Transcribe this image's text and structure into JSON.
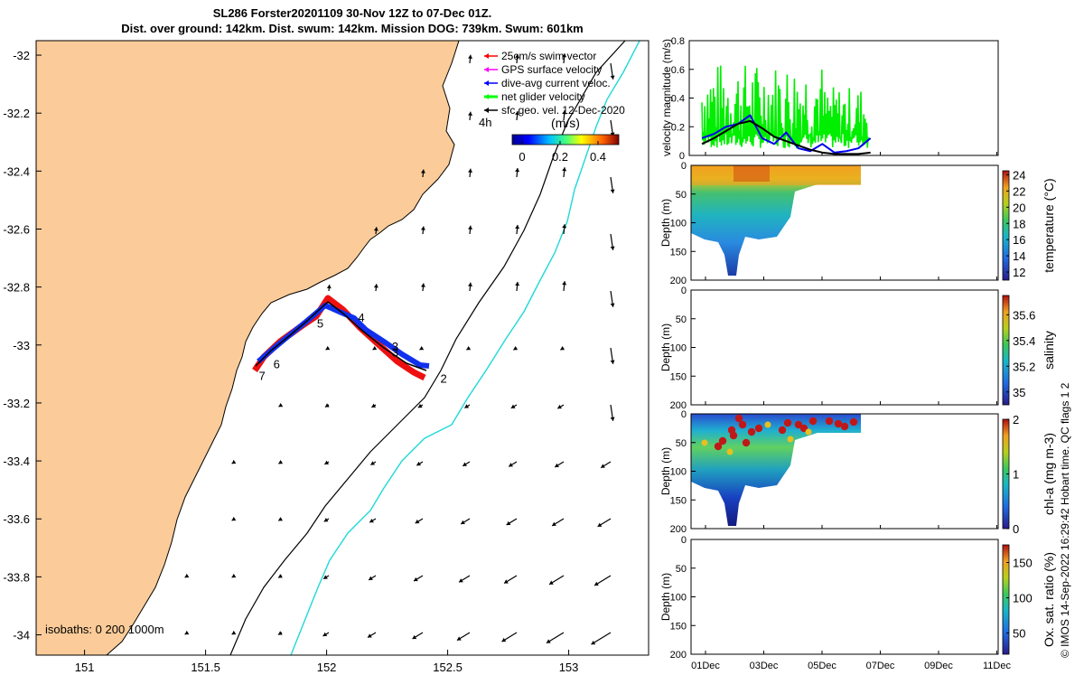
{
  "title": {
    "line1": "SL286 Forster20201109 30-Nov 12Z to 07-Dec 01Z.",
    "line2": "Dist. over ground: 142km. Dist. swum: 142km. Mission DOG: 739km. Swum: 601km"
  },
  "side_note": "© IMOS 14-Sep-2022 16:29:42 Hobart time. QC flags 1  2",
  "chart_data": [
    {
      "type": "map",
      "x_ticks": [
        "151",
        "151.5",
        "152",
        "152.5",
        "153"
      ],
      "y_ticks": [
        "-32",
        "-32.2",
        "-32.4",
        "-32.6",
        "-32.8",
        "-33",
        "-33.2",
        "-33.4",
        "-33.6",
        "-33.8",
        "-34"
      ],
      "xlim": [
        150.8,
        153.33
      ],
      "ylim": [
        -34.07,
        -31.95
      ],
      "legend": {
        "placement": "top-right",
        "items": [
          {
            "label": "25cm/s swim vector",
            "color": "#ff0000"
          },
          {
            "label": "GPS surface velocity",
            "color": "#ff00ff"
          },
          {
            "label": "dive-avg current veloc.",
            "color": "#0000ff"
          },
          {
            "label": "net glider velocity",
            "color": "#00ff00"
          },
          {
            "label": "sfc geo. vel. 12-Dec-2020",
            "color": "#000000"
          }
        ]
      },
      "extra_label": "4h",
      "colorbar": {
        "label": "(m/s)",
        "ticks": [
          "0",
          "0.2",
          "0.4"
        ]
      },
      "isobath_label": "isobaths: 0 200 1000m",
      "track_labels": [
        {
          "text": "2",
          "lon": 152.47,
          "lat": -33.13
        },
        {
          "text": "3",
          "lon": 152.27,
          "lat": -33.02
        },
        {
          "text": "3",
          "lon": 152.27,
          "lat": -33.04
        },
        {
          "text": "4",
          "lon": 152.13,
          "lat": -32.92
        },
        {
          "text": "5",
          "lon": 151.96,
          "lat": -32.94
        },
        {
          "text": "6",
          "lon": 151.78,
          "lat": -33.08
        },
        {
          "text": "7",
          "lon": 151.72,
          "lat": -33.12
        }
      ],
      "track": [
        [
          151.69,
          -33.11
        ],
        [
          151.8,
          -33.02
        ],
        [
          151.9,
          -32.95
        ],
        [
          152.0,
          -32.87
        ],
        [
          152.07,
          -32.92
        ],
        [
          152.17,
          -32.98
        ],
        [
          152.27,
          -33.04
        ],
        [
          152.35,
          -33.09
        ],
        [
          152.42,
          -33.11
        ]
      ]
    },
    {
      "type": "line",
      "ylabel": "velocity magnitude (m/s)",
      "ylim": [
        0,
        0.8
      ],
      "y_ticks": [
        "0",
        "0.2",
        "0.4",
        "0.6",
        "0.8"
      ],
      "x_ticks": [
        "01Dec",
        "03Dec",
        "05Dec",
        "07Dec",
        "09Dec",
        "11Dec"
      ],
      "series": [
        {
          "color": "#00ee00",
          "x": [
            0.0,
            0.5,
            1.0,
            1.5,
            2.0,
            2.5,
            3.0,
            3.5,
            4.0,
            4.5,
            5.0,
            5.5,
            6.0,
            6.5,
            7.0
          ],
          "values": [
            0.3,
            0.45,
            0.5,
            0.6,
            0.55,
            0.35,
            0.5,
            0.4,
            0.45,
            0.3,
            0.4,
            0.35,
            0.3,
            0.4,
            0.25
          ]
        },
        {
          "color": "#0000ee",
          "x": [
            0.0,
            0.5,
            1.0,
            1.5,
            2.0,
            2.5,
            3.0,
            3.5,
            4.0,
            4.5,
            5.0,
            5.5,
            6.0,
            6.5,
            7.0
          ],
          "values": [
            0.12,
            0.15,
            0.2,
            0.22,
            0.28,
            0.12,
            0.08,
            0.16,
            0.05,
            0.03,
            0.08,
            0.02,
            0.03,
            0.05,
            0.12
          ]
        },
        {
          "color": "#000000",
          "x": [
            0.0,
            0.5,
            1.0,
            1.5,
            2.0,
            2.5,
            3.0,
            3.5,
            4.0,
            4.5,
            5.0,
            5.5,
            6.0,
            6.5,
            7.0
          ],
          "values": [
            0.08,
            0.12,
            0.17,
            0.22,
            0.24,
            0.19,
            0.13,
            0.1,
            0.07,
            0.04,
            0.02,
            0.01,
            0.01,
            0.01,
            0.02
          ]
        }
      ]
    },
    {
      "type": "heatmap",
      "ylabel": "Depth (m)",
      "ylim": [
        200,
        0
      ],
      "y_ticks": [
        "0",
        "50",
        "100",
        "150",
        "200"
      ],
      "colorbar": {
        "label": "temperature (°C)",
        "ticks": [
          "12",
          "14",
          "16",
          "18",
          "20",
          "22",
          "24"
        ],
        "range": [
          11,
          24.5
        ]
      }
    },
    {
      "type": "heatmap",
      "ylabel": "Depth (m)",
      "ylim": [
        200,
        0
      ],
      "y_ticks": [
        "0",
        "50",
        "100",
        "150",
        "200"
      ],
      "colorbar": {
        "label": "salinity",
        "ticks": [
          "35",
          "35.2",
          "35.4",
          "35.6"
        ],
        "range": [
          34.9,
          35.75
        ]
      }
    },
    {
      "type": "heatmap",
      "ylabel": "Depth (m)",
      "ylim": [
        200,
        0
      ],
      "y_ticks": [
        "0",
        "50",
        "100",
        "150",
        "200"
      ],
      "colorbar": {
        "label": "chl-a (mg m-3)",
        "ticks": [
          "0",
          "1",
          "2"
        ],
        "range": [
          0,
          2
        ]
      }
    },
    {
      "type": "heatmap",
      "ylabel": "Depth (m)",
      "ylim": [
        200,
        0
      ],
      "y_ticks": [
        "0",
        "50",
        "100",
        "150",
        "200"
      ],
      "x_ticks": [
        "01Dec",
        "03Dec",
        "05Dec",
        "07Dec",
        "09Dec",
        "11Dec"
      ],
      "colorbar": {
        "label": "Ox. sat. ratio (%)",
        "ticks": [
          "50",
          "100",
          "150"
        ],
        "range": [
          20,
          175
        ]
      }
    }
  ]
}
